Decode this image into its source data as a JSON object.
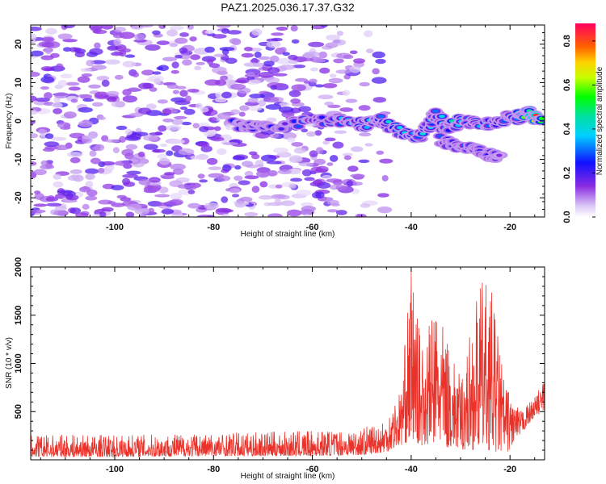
{
  "chart_data": [
    {
      "type": "heatmap",
      "title": "PAZ1.2025.036.17.37.G32",
      "xlabel": "Height of straight line (km)",
      "ylabel": "Frequency (Hz)",
      "xlim": [
        -117,
        -13
      ],
      "ylim": [
        -25,
        25
      ],
      "xticks": [
        -100,
        -80,
        -60,
        -40,
        -20
      ],
      "yticks": [
        -20,
        -10,
        0,
        10,
        20
      ],
      "colorbar": {
        "label": "Normalized spectral amplitude",
        "range": [
          0,
          0.88
        ],
        "ticks": [
          0.0,
          0.2,
          0.4,
          0.6,
          0.8
        ]
      },
      "features": {
        "background_noise_extent_km": [
          -117,
          -45
        ],
        "main_ridge": [
          {
            "x": -76,
            "y": -1,
            "level": 0.25
          },
          {
            "x": -70,
            "y": -2,
            "level": 0.2
          },
          {
            "x": -60,
            "y": 0,
            "level": 0.3
          },
          {
            "x": -55,
            "y": 0,
            "level": 0.35
          },
          {
            "x": -50,
            "y": -1,
            "level": 0.45
          },
          {
            "x": -46,
            "y": 0,
            "level": 0.4
          },
          {
            "x": -42,
            "y": -3,
            "level": 0.45
          },
          {
            "x": -38,
            "y": -4,
            "level": 0.4
          },
          {
            "x": -35,
            "y": 2,
            "level": 0.4
          },
          {
            "x": -33,
            "y": -2,
            "level": 0.35
          },
          {
            "x": -30,
            "y": 0,
            "level": 0.45
          },
          {
            "x": -25,
            "y": -1,
            "level": 0.35
          },
          {
            "x": -20,
            "y": 1,
            "level": 0.4
          },
          {
            "x": -18,
            "y": 1,
            "level": 0.5
          },
          {
            "x": -16,
            "y": 2,
            "level": 0.75
          },
          {
            "x": -14,
            "y": 0,
            "level": 0.85
          }
        ],
        "branch": [
          {
            "x": -34,
            "y": -5,
            "level": 0.3
          },
          {
            "x": -29,
            "y": -7,
            "level": 0.3
          },
          {
            "x": -25,
            "y": -8,
            "level": 0.25
          },
          {
            "x": -22,
            "y": -10,
            "level": 0.2
          }
        ]
      }
    },
    {
      "type": "line",
      "xlabel": "Height of straight line (km)",
      "ylabel": "SNR (10 * v/v)",
      "xlim": [
        -117,
        -13
      ],
      "ylim": [
        0,
        2000
      ],
      "xticks": [
        -100,
        -80,
        -60,
        -40,
        -20
      ],
      "yticks": [
        500,
        1000,
        1500,
        2000
      ],
      "line_color": "#e8322a",
      "envelope": [
        {
          "x": -117,
          "low": 30,
          "high": 260
        },
        {
          "x": -100,
          "low": 30,
          "high": 260
        },
        {
          "x": -80,
          "low": 40,
          "high": 280
        },
        {
          "x": -60,
          "low": 40,
          "high": 300
        },
        {
          "x": -50,
          "low": 50,
          "high": 330
        },
        {
          "x": -45,
          "low": 80,
          "high": 450
        },
        {
          "x": -42,
          "low": 150,
          "high": 750
        },
        {
          "x": -40,
          "low": 200,
          "high": 2000
        },
        {
          "x": -38,
          "low": 150,
          "high": 1200
        },
        {
          "x": -35,
          "low": 150,
          "high": 1600
        },
        {
          "x": -30,
          "low": 100,
          "high": 850
        },
        {
          "x": -26,
          "low": 100,
          "high": 1850
        },
        {
          "x": -24,
          "low": 100,
          "high": 1850
        },
        {
          "x": -21,
          "low": 50,
          "high": 800
        },
        {
          "x": -18,
          "low": 250,
          "high": 500
        },
        {
          "x": -15,
          "low": 450,
          "high": 650
        },
        {
          "x": -13,
          "low": 500,
          "high": 850
        }
      ]
    }
  ]
}
